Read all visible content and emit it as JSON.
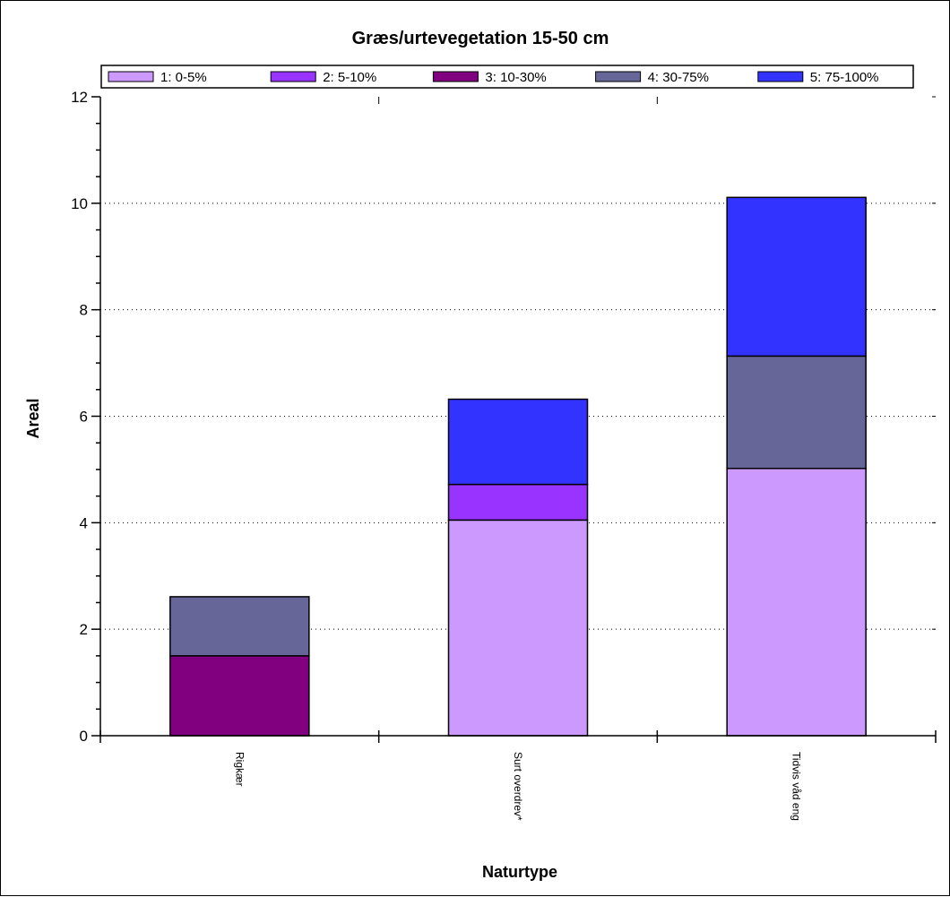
{
  "chart_data": {
    "type": "bar",
    "stacked": true,
    "title": "Græs/urtevegetation 15-50 cm",
    "xlabel": "Naturtype",
    "ylabel": "Areal",
    "ylim": [
      0,
      12
    ],
    "yticks": [
      "0",
      "2",
      "4",
      "6",
      "8",
      "10",
      "12"
    ],
    "categories": [
      "Rigkær",
      "Surt overdrev*",
      "Tidvis våd eng"
    ],
    "grid": "horizontal-dotted",
    "legend_position": "top",
    "series": [
      {
        "name": "1: 0-5%",
        "color": "#cc99ff",
        "values": [
          0,
          4.05,
          5.02
        ]
      },
      {
        "name": "2: 5-10%",
        "color": "#9933ff",
        "values": [
          0,
          0.67,
          0
        ]
      },
      {
        "name": "3: 10-30%",
        "color": "#800080",
        "values": [
          1.5,
          0,
          0
        ]
      },
      {
        "name": "4: 30-75%",
        "color": "#666699",
        "values": [
          1.11,
          0,
          2.11
        ]
      },
      {
        "name": "5: 75-100%",
        "color": "#3333ff",
        "values": [
          0,
          1.6,
          2.98
        ]
      }
    ]
  }
}
